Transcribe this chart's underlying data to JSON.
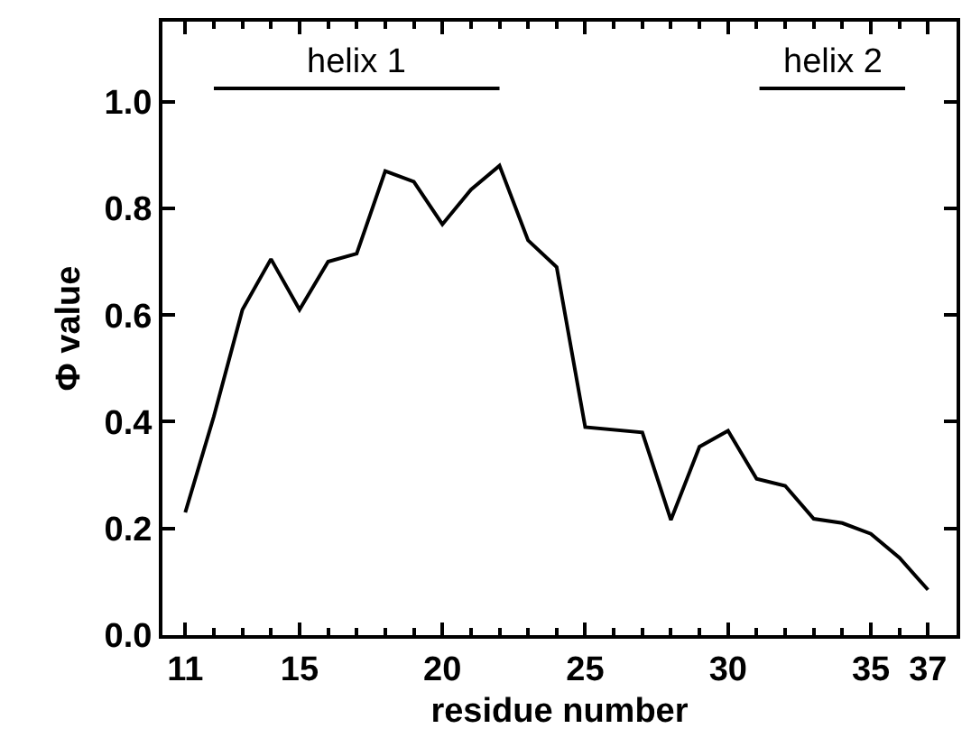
{
  "chart_data": {
    "type": "line",
    "xlabel": "residue number",
    "ylabel": "Φ value",
    "xlim": [
      10.2,
      38
    ],
    "xticks": [
      11,
      15,
      20,
      25,
      30,
      35,
      37
    ],
    "ylim": [
      0,
      1.15
    ],
    "yticks": [
      {
        "value": 0,
        "label": "0.0"
      },
      0.2,
      0.4,
      0.6,
      0.8,
      {
        "value": 1,
        "label": "1.0"
      }
    ],
    "series": [
      {
        "color": "#000000",
        "x": [
          11,
          12,
          13,
          14,
          15,
          16,
          17,
          18,
          19,
          20,
          21,
          22,
          23,
          24,
          25,
          27,
          28,
          29,
          30,
          31,
          32,
          33,
          34,
          35,
          36,
          37
        ],
        "values": [
          0.23,
          0.41,
          0.61,
          0.705,
          0.61,
          0.7,
          0.715,
          0.87,
          0.85,
          0.77,
          0.835,
          0.88,
          0.74,
          0.69,
          0.39,
          0.38,
          0.216,
          0.353,
          0.383,
          0.293,
          0.28,
          0.218,
          0.21,
          0.19,
          0.145,
          0.085
        ]
      },
      {
        "color": "#000000",
        "x": [
          12,
          22
        ],
        "values": [
          1.025,
          1.025
        ]
      },
      {
        "color": "#000000",
        "x": [
          31.1,
          36.2
        ],
        "values": [
          1.025,
          1.025
        ]
      }
    ],
    "annotations": [
      {
        "text": "helix 1",
        "x": 17,
        "y": 1.025
      },
      {
        "text": "helix 2",
        "x": 33.65,
        "y": 1.025
      }
    ],
    "marker": "none",
    "line_style": "solid"
  }
}
